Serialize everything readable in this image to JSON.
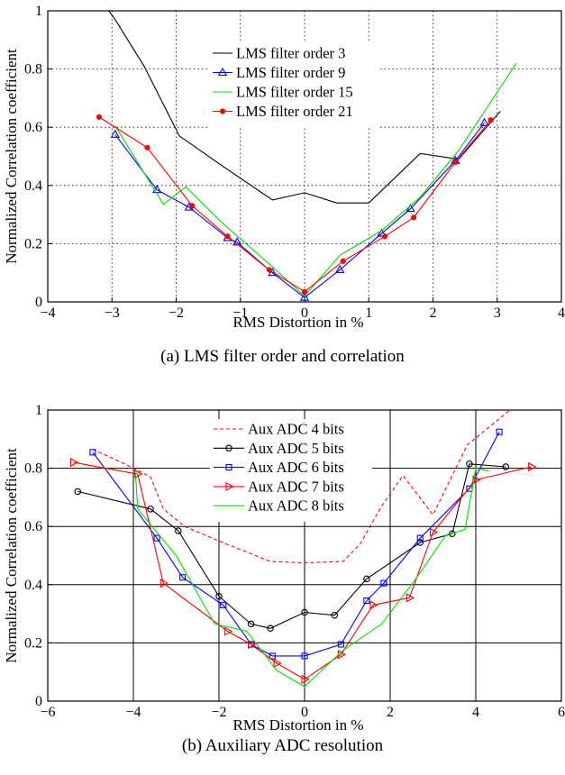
{
  "captions": {
    "a": "(a) LMS filter order and correlation",
    "b": "(b) Auxiliary ADC resolution"
  },
  "chart_data": [
    {
      "type": "line",
      "xlabel": "RMS Distortion in %",
      "ylabel": "Normalized Correlation coefficient",
      "xlim": [
        -4,
        4
      ],
      "ylim": [
        0,
        1
      ],
      "xticks": [
        -4,
        -3,
        -2,
        -1,
        0,
        1,
        2,
        3,
        4
      ],
      "xtick_labels": [
        "−4",
        "−3",
        "−2",
        "−1",
        "0",
        "1",
        "2",
        "3",
        "4"
      ],
      "yticks": [
        0,
        0.2,
        0.4,
        0.6,
        0.8,
        1
      ],
      "ytick_labels": [
        "0",
        "0.2",
        "0.4",
        "0.6",
        "0.8",
        "1"
      ],
      "grid": "dotted",
      "legend_position": "top-center",
      "series": [
        {
          "name": "LMS filter order 3",
          "color": "#000000",
          "marker": "none",
          "dash": "solid",
          "x": [
            -3.05,
            -2.95,
            -2.5,
            -1.95,
            -1.3,
            -0.5,
            0,
            0.5,
            1.0,
            1.8,
            2.4,
            3.05
          ],
          "y": [
            1.0,
            0.97,
            0.81,
            0.57,
            0.47,
            0.35,
            0.375,
            0.34,
            0.34,
            0.51,
            0.49,
            0.655
          ]
        },
        {
          "name": "LMS filter order 9",
          "color": "#0000ff",
          "marker": "triangle",
          "dash": "solid",
          "x": [
            -2.95,
            -2.3,
            -1.8,
            -1.2,
            -1.05,
            -0.5,
            0,
            0.55,
            1.2,
            1.65,
            2.35,
            2.8
          ],
          "y": [
            0.575,
            0.385,
            0.325,
            0.22,
            0.205,
            0.1,
            0.015,
            0.11,
            0.235,
            0.32,
            0.485,
            0.615
          ]
        },
        {
          "name": "LMS filter order 15",
          "color": "#00dd00",
          "marker": "none",
          "dash": "solid",
          "x": [
            -2.95,
            -2.2,
            -1.85,
            -1.3,
            -0.5,
            0,
            0.55,
            1.2,
            1.8,
            2.4,
            3.3
          ],
          "y": [
            0.605,
            0.335,
            0.395,
            0.275,
            0.12,
            0.02,
            0.16,
            0.245,
            0.36,
            0.52,
            0.82
          ]
        },
        {
          "name": "LMS filter order 21",
          "color": "#ff0000",
          "marker": "dot",
          "dash": "solid",
          "x": [
            -3.2,
            -2.45,
            -1.75,
            -1.2,
            -0.55,
            0,
            0.6,
            1.25,
            1.7,
            2.35,
            2.9
          ],
          "y": [
            0.635,
            0.53,
            0.33,
            0.225,
            0.11,
            0.035,
            0.14,
            0.225,
            0.29,
            0.48,
            0.625
          ]
        }
      ]
    },
    {
      "type": "line",
      "xlabel": "RMS Distortion in %",
      "ylabel": "Normalized Correlation coefficient",
      "xlim": [
        -6,
        6
      ],
      "ylim": [
        0,
        1
      ],
      "xticks": [
        -6,
        -4,
        -2,
        0,
        2,
        4,
        6
      ],
      "xtick_labels": [
        "−6",
        "−4",
        "−2",
        "0",
        "2",
        "4",
        "6"
      ],
      "yticks": [
        0,
        0.2,
        0.4,
        0.6,
        0.8,
        1
      ],
      "ytick_labels": [
        "0",
        "0.2",
        "0.4",
        "0.6",
        "0.8",
        "1"
      ],
      "grid": "solid",
      "legend_position": "top-center",
      "series": [
        {
          "name": "Aux ADC 4 bits",
          "color": "#ff0000",
          "marker": "none",
          "dash": "dashed",
          "x": [
            -4.95,
            -4.2,
            -3.6,
            -3.3,
            -2.8,
            -2.0,
            -0.8,
            0,
            0.9,
            1.3,
            1.8,
            2.3,
            3.0,
            3.8,
            4.8
          ],
          "y": [
            0.865,
            0.815,
            0.77,
            0.66,
            0.6,
            0.55,
            0.48,
            0.475,
            0.48,
            0.54,
            0.67,
            0.775,
            0.64,
            0.88,
            1.0
          ]
        },
        {
          "name": "Aux ADC 5 bits",
          "color": "#000000",
          "marker": "circle",
          "dash": "solid",
          "x": [
            -5.3,
            -3.6,
            -2.95,
            -2.0,
            -1.25,
            -0.8,
            0,
            0.7,
            1.45,
            2.7,
            3.45,
            3.85,
            4.7
          ],
          "y": [
            0.72,
            0.66,
            0.585,
            0.36,
            0.265,
            0.25,
            0.305,
            0.295,
            0.42,
            0.545,
            0.575,
            0.815,
            0.805
          ]
        },
        {
          "name": "Aux ADC 6 bits",
          "color": "#0000ff",
          "marker": "square",
          "dash": "solid",
          "x": [
            -4.95,
            -3.45,
            -2.85,
            -1.9,
            -1.25,
            -0.75,
            0,
            0.85,
            1.45,
            1.85,
            2.7,
            3.85,
            4.55
          ],
          "y": [
            0.855,
            0.56,
            0.425,
            0.33,
            0.195,
            0.155,
            0.155,
            0.195,
            0.345,
            0.405,
            0.56,
            0.73,
            0.925
          ]
        },
        {
          "name": "Aux ADC 7 bits",
          "color": "#ff0000",
          "marker": "triangle-right",
          "dash": "solid",
          "x": [
            -5.4,
            -3.9,
            -3.3,
            -1.8,
            -1.25,
            -0.65,
            0,
            0.85,
            1.6,
            2.45,
            3.0,
            4.0,
            5.3
          ],
          "y": [
            0.82,
            0.78,
            0.405,
            0.24,
            0.195,
            0.13,
            0.075,
            0.16,
            0.33,
            0.355,
            0.58,
            0.76,
            0.805
          ]
        },
        {
          "name": "Aux ADC 8 bits",
          "color": "#00dd00",
          "marker": "none",
          "dash": "solid",
          "x": [
            -3.95,
            -3.9,
            -3.0,
            -2.1,
            -1.35,
            -0.65,
            0,
            0.9,
            1.8,
            2.6,
            3.3,
            3.75,
            4.0,
            4.3
          ],
          "y": [
            0.78,
            0.66,
            0.5,
            0.265,
            0.24,
            0.105,
            0.05,
            0.175,
            0.265,
            0.42,
            0.57,
            0.59,
            0.8,
            0.79
          ]
        }
      ]
    }
  ]
}
